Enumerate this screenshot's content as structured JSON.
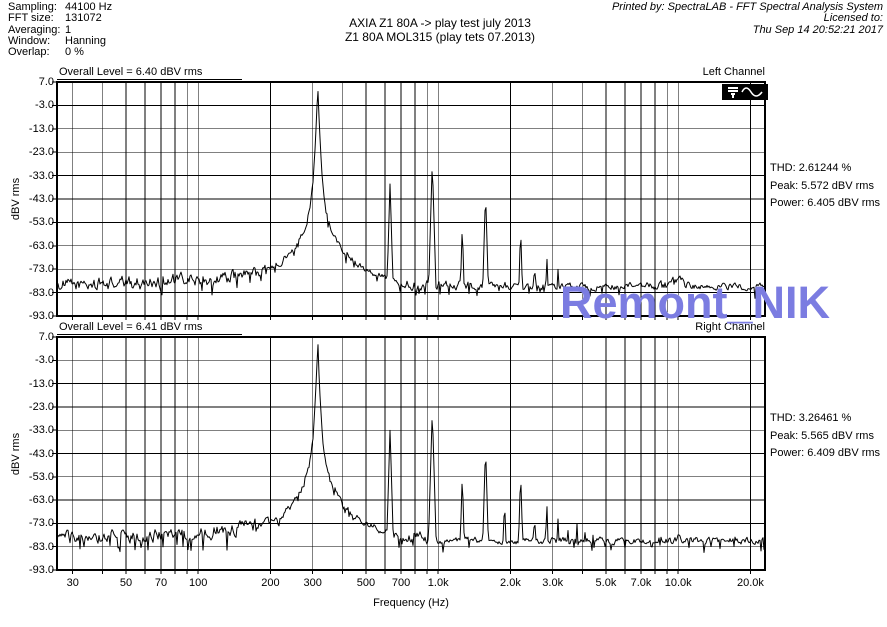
{
  "header": {
    "info": [
      {
        "label": "Sampling:",
        "value": "44100 Hz"
      },
      {
        "label": "FFT size:",
        "value": "131072"
      },
      {
        "label": "Averaging:",
        "value": "1"
      },
      {
        "label": "Window:",
        "value": "Hanning"
      },
      {
        "label": "Overlap:",
        "value": "0 %"
      }
    ],
    "title_line1": "AXIA Z1 80A -> play test july 2013",
    "title_line2": "Z1 80A  MOL315  (play tets 07.2013)",
    "printed_by": "Printed by: SpectraLAB - FFT Spectral Analysis System",
    "licensed_to": "Licensed to:",
    "datetime": "Thu Sep 14 20:52:21 2017"
  },
  "watermark": {
    "text": "Remont_NIK",
    "color": "#7b7ce1"
  },
  "chart_data": [
    {
      "type": "line",
      "channel_label": "Left Channel",
      "overall_level": "Overall Level = 6.40 dBV rms",
      "stats": {
        "thd": "THD: 2.61244 %",
        "peak": "Peak: 5.572 dBV rms",
        "power": "Power: 6.405 dBV rms"
      },
      "ylabel": "dBV rms",
      "xlabel": "Frequency (Hz)",
      "x_scale": "log",
      "x_range": [
        25.8,
        23000
      ],
      "y_range": [
        -93,
        7
      ],
      "grid": true,
      "y_tick_labels": [
        "7.0",
        "-3.0",
        "-13.0",
        "-23.0",
        "-33.0",
        "-43.0",
        "-53.0",
        "-63.0",
        "-73.0",
        "-83.0",
        "-93.0"
      ],
      "x_tick_labels": [
        {
          "f": 30,
          "t": "30"
        },
        {
          "f": 50,
          "t": "50"
        },
        {
          "f": 70,
          "t": "70"
        },
        {
          "f": 100,
          "t": "100"
        },
        {
          "f": 200,
          "t": "200"
        },
        {
          "f": 300,
          "t": "300"
        },
        {
          "f": 500,
          "t": "500"
        },
        {
          "f": 700,
          "t": "700"
        },
        {
          "f": 1000,
          "t": "1.0k"
        },
        {
          "f": 2000,
          "t": "2.0k"
        },
        {
          "f": 3000,
          "t": "3.0k"
        },
        {
          "f": 5000,
          "t": "5.0k"
        },
        {
          "f": 7000,
          "t": "7.0k"
        },
        {
          "f": 10000,
          "t": "10.0k"
        },
        {
          "f": 20000,
          "t": "20.0k"
        }
      ],
      "fundamental_hz": 315,
      "fundamental_peak_db": 5.6,
      "harmonics_hz_db": [
        [
          630,
          -36
        ],
        [
          945,
          -27
        ],
        [
          1260,
          -54
        ],
        [
          1575,
          -40
        ],
        [
          1890,
          -72
        ],
        [
          2205,
          -55
        ],
        [
          2520,
          -68
        ],
        [
          2835,
          -66
        ],
        [
          3150,
          -70
        ],
        [
          3465,
          -77
        ],
        [
          5040,
          -80
        ],
        [
          17800,
          -80
        ],
        [
          19500,
          -81
        ]
      ],
      "sidebands_hz_db": [
        [
          267,
          -56
        ],
        [
          283,
          -49
        ],
        [
          297,
          -44
        ],
        [
          334,
          -43
        ],
        [
          350,
          -48
        ],
        [
          372,
          -56
        ]
      ],
      "noise_floor_hz_db": [
        [
          25.8,
          -80
        ],
        [
          50,
          -79
        ],
        [
          80,
          -78
        ],
        [
          120,
          -77
        ],
        [
          170,
          -75
        ],
        [
          230,
          -73
        ],
        [
          320,
          -72
        ],
        [
          420,
          -74
        ],
        [
          550,
          -78
        ],
        [
          800,
          -80
        ],
        [
          1200,
          -81
        ],
        [
          2000,
          -82
        ],
        [
          3000,
          -83
        ],
        [
          4500,
          -84
        ],
        [
          6000,
          -83
        ],
        [
          8000,
          -81
        ],
        [
          10000,
          -80
        ],
        [
          13000,
          -82
        ],
        [
          17000,
          -83
        ],
        [
          23000,
          -84
        ]
      ],
      "has_input_icon": true
    },
    {
      "type": "line",
      "channel_label": "Right Channel",
      "overall_level": "Overall Level = 6.41 dBV rms",
      "stats": {
        "thd": "THD: 3.26461 %",
        "peak": "Peak: 5.565 dBV rms",
        "power": "Power: 6.409 dBV rms"
      },
      "ylabel": "dBV rms",
      "xlabel": "Frequency (Hz)",
      "x_scale": "log",
      "x_range": [
        25.8,
        23000
      ],
      "y_range": [
        -93,
        7
      ],
      "grid": true,
      "y_tick_labels": [
        "7.0",
        "-3.0",
        "-13.0",
        "-23.0",
        "-33.0",
        "-43.0",
        "-53.0",
        "-63.0",
        "-73.0",
        "-83.0",
        "-93.0"
      ],
      "x_tick_labels": [
        {
          "f": 30,
          "t": "30"
        },
        {
          "f": 50,
          "t": "50"
        },
        {
          "f": 70,
          "t": "70"
        },
        {
          "f": 100,
          "t": "100"
        },
        {
          "f": 200,
          "t": "200"
        },
        {
          "f": 300,
          "t": "300"
        },
        {
          "f": 500,
          "t": "500"
        },
        {
          "f": 700,
          "t": "700"
        },
        {
          "f": 1000,
          "t": "1.0k"
        },
        {
          "f": 2000,
          "t": "2.0k"
        },
        {
          "f": 3000,
          "t": "3.0k"
        },
        {
          "f": 5000,
          "t": "5.0k"
        },
        {
          "f": 7000,
          "t": "7.0k"
        },
        {
          "f": 10000,
          "t": "10.0k"
        },
        {
          "f": 20000,
          "t": "20.0k"
        }
      ],
      "fundamental_hz": 315,
      "fundamental_peak_db": 5.6,
      "harmonics_hz_db": [
        [
          630,
          -32.5
        ],
        [
          945,
          -24.5
        ],
        [
          1260,
          -52
        ],
        [
          1575,
          -40
        ],
        [
          1890,
          -62
        ],
        [
          2205,
          -51
        ],
        [
          2520,
          -67
        ],
        [
          2835,
          -63
        ],
        [
          3150,
          -68
        ],
        [
          3465,
          -72
        ],
        [
          3780,
          -70
        ],
        [
          4095,
          -75
        ],
        [
          4410,
          -76
        ],
        [
          14200,
          -80
        ],
        [
          15800,
          -81
        ]
      ],
      "sidebands_hz_db": [
        [
          267,
          -55
        ],
        [
          283,
          -48
        ],
        [
          297,
          -43
        ],
        [
          334,
          -42
        ],
        [
          350,
          -47
        ],
        [
          372,
          -55
        ]
      ],
      "noise_floor_hz_db": [
        [
          25.8,
          -79
        ],
        [
          50,
          -78
        ],
        [
          80,
          -78
        ],
        [
          120,
          -76
        ],
        [
          170,
          -74
        ],
        [
          230,
          -72
        ],
        [
          320,
          -71
        ],
        [
          420,
          -73
        ],
        [
          550,
          -77
        ],
        [
          800,
          -80
        ],
        [
          1200,
          -82
        ],
        [
          2000,
          -83
        ],
        [
          3000,
          -83
        ],
        [
          4500,
          -83
        ],
        [
          6000,
          -82
        ],
        [
          8000,
          -80
        ],
        [
          10000,
          -81
        ],
        [
          13000,
          -83
        ],
        [
          17000,
          -85
        ],
        [
          23000,
          -85
        ]
      ],
      "has_input_icon": false
    }
  ]
}
